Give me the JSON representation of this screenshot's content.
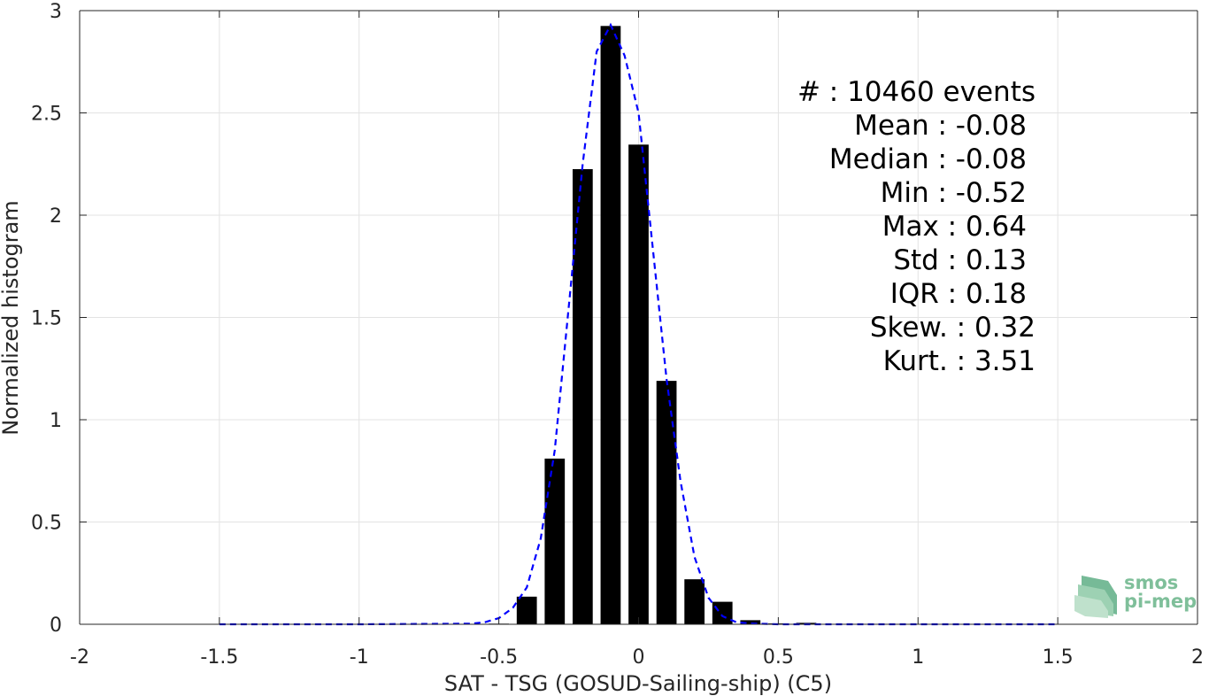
{
  "chart_data": {
    "type": "bar",
    "xlabel": "SAT - TSG (GOSUD-Sailing-ship) (C5)",
    "ylabel": "Normalized histogram",
    "xlim": [
      -2,
      2
    ],
    "ylim": [
      0,
      3
    ],
    "x_ticks": [
      -2,
      -1.5,
      -1,
      -0.5,
      0,
      0.5,
      1,
      1.5,
      2
    ],
    "x_tick_labels": [
      "-2",
      "-1.5",
      "-1",
      "-0.5",
      "0",
      "0.5",
      "1",
      "1.5",
      "2"
    ],
    "y_ticks": [
      0,
      0.5,
      1,
      1.5,
      2,
      2.5,
      3
    ],
    "y_tick_labels": [
      "0",
      "0.5",
      "1",
      "1.5",
      "2",
      "2.5",
      "3"
    ],
    "grid": true,
    "bar_color": "#000000",
    "bars": {
      "centers": [
        -0.5,
        -0.4,
        -0.3,
        -0.2,
        -0.1,
        0.0,
        0.1,
        0.2,
        0.3,
        0.4,
        0.5,
        0.6
      ],
      "values": [
        0.003,
        0.135,
        0.81,
        2.225,
        2.925,
        2.345,
        1.19,
        0.22,
        0.11,
        0.02,
        0.004,
        0.007
      ]
    },
    "fit_curve": {
      "style": "dashed",
      "color": "#0000ff",
      "x": [
        -1.5,
        -1.0,
        -0.6,
        -0.55,
        -0.5,
        -0.45,
        -0.4,
        -0.35,
        -0.3,
        -0.25,
        -0.2,
        -0.15,
        -0.1,
        -0.05,
        0.0,
        0.05,
        0.1,
        0.15,
        0.2,
        0.25,
        0.3,
        0.35,
        0.4,
        0.5,
        1.0,
        1.5
      ],
      "y": [
        0,
        0,
        0.003,
        0.01,
        0.03,
        0.08,
        0.18,
        0.42,
        0.85,
        1.55,
        2.25,
        2.8,
        2.93,
        2.78,
        2.5,
        1.85,
        1.2,
        0.7,
        0.33,
        0.13,
        0.04,
        0.01,
        0.004,
        0,
        0,
        0
      ]
    }
  },
  "stats": {
    "events": "#  : 10460 events",
    "mean": "Mean : -0.08",
    "median": "Median : -0.08",
    "min": "Min : -0.52",
    "max": "Max : 0.64",
    "std": "Std : 0.13",
    "iqr": "IQR : 0.18",
    "skew": "Skew. : 0.32",
    "kurt": "Kurt. : 3.51"
  },
  "logo": {
    "line1": "smos",
    "line2": "pi-mep",
    "color": "#7fbf9a"
  }
}
